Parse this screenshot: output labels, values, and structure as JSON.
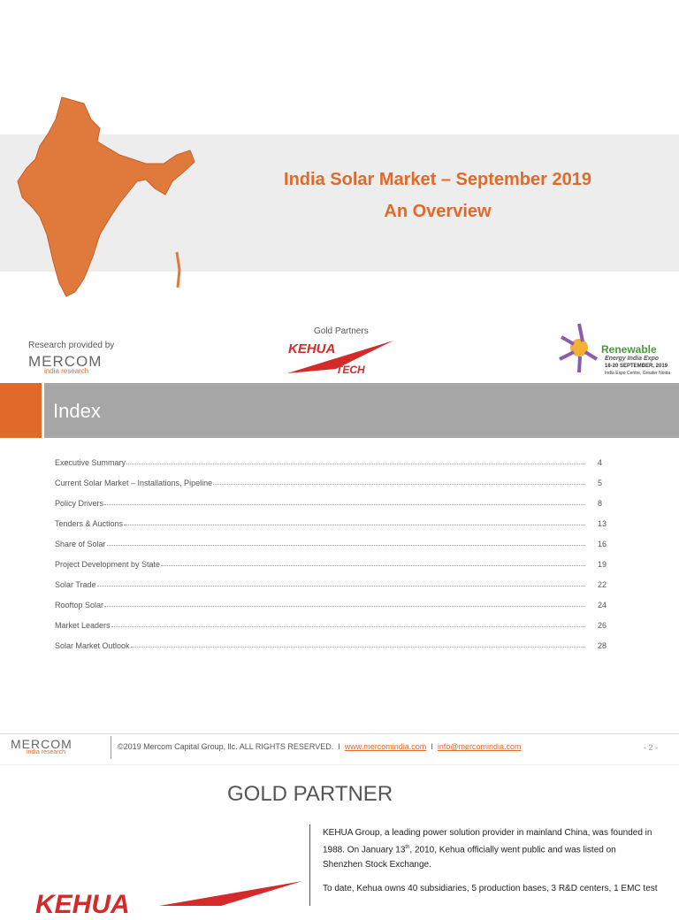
{
  "header": {
    "title": "India Solar Market – September 2019",
    "subtitle": "An Overview"
  },
  "partners": {
    "research_label": "Research provided by",
    "mercom": "MERCOM",
    "mercom_sub": "india research",
    "gold_label": "Gold Partners",
    "kehua": "KEHUA",
    "kehua_sub": "TECH",
    "expo_name": "Renewable",
    "expo_sub": "Energy India Expo",
    "expo_date": "18-20 SEPTEMBER, 2019",
    "expo_venue": "India Expo Centre, Greater Noida"
  },
  "index": {
    "title": "Index",
    "entries": [
      {
        "label": "Executive Summary",
        "page": 4
      },
      {
        "label": "Current Solar Market – Installations, Pipeline",
        "page": 5
      },
      {
        "label": "Policy Drivers",
        "page": 8
      },
      {
        "label": "Tenders & Auctions",
        "page": 13
      },
      {
        "label": "Share of Solar",
        "page": 16
      },
      {
        "label": "Project Development by State",
        "page": 19
      },
      {
        "label": "Solar Trade",
        "page": 22
      },
      {
        "label": "Rooftop Solar",
        "page": 24
      },
      {
        "label": "Market Leaders",
        "page": 26
      },
      {
        "label": "Solar Market Outlook",
        "page": 28
      }
    ]
  },
  "footer": {
    "mercom": "MERCOM",
    "mercom_sub": "india research",
    "copyright": "©2019 Mercom Capital Group, llc. ALL RIGHTS RESERVED.",
    "sep": "I",
    "website": "www.mercomindia.com",
    "email": "info@mercomindia.com",
    "page": "- 2 -"
  },
  "next_page": {
    "title": "GOLD PARTNER",
    "logo": "KEHUA",
    "p1_a": "KEHUA Group, a leading power solution provider in mainland China, was founded in 1988. On January 13",
    "p1_sup": "th",
    "p1_b": ", 2010, Kehua officially went public and was listed on Shenzhen Stock Exchange.",
    "p2": "To date, Kehua owns 40 subsidiaries, 5 production bases, 3 R&D centers, 1 EMC test"
  }
}
